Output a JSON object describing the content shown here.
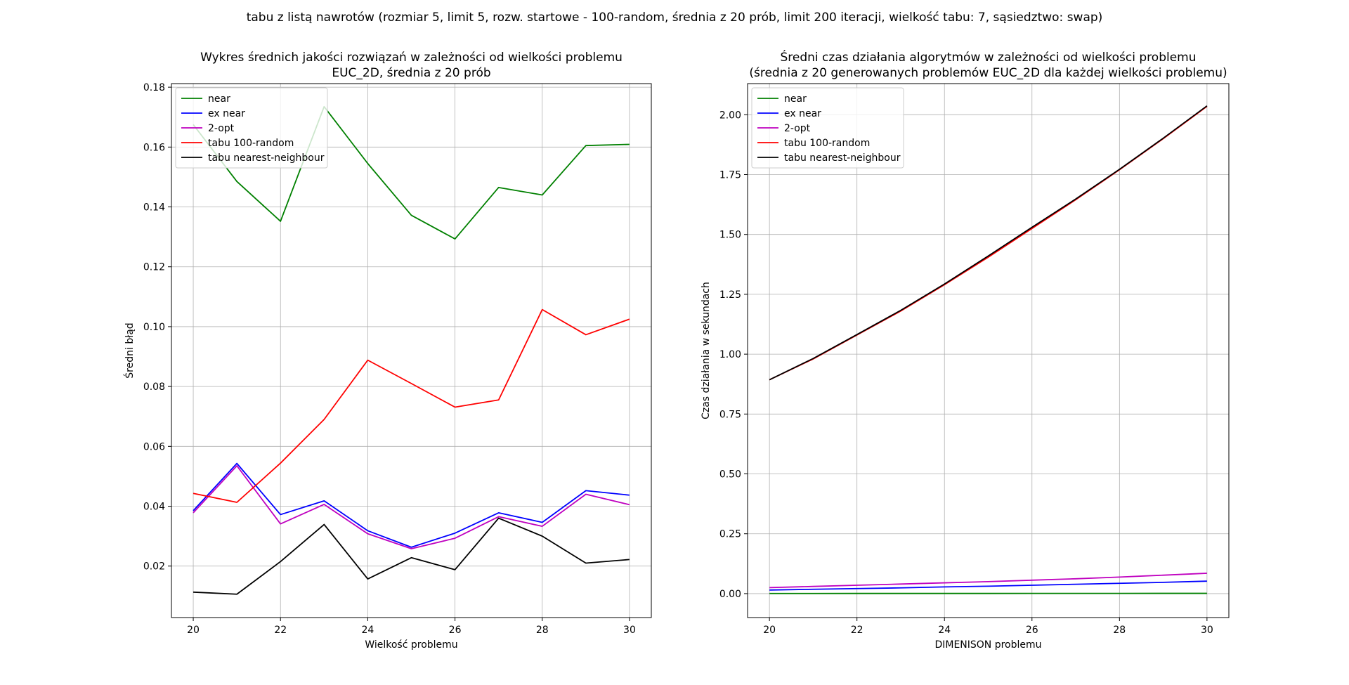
{
  "figure": {
    "suptitle": "tabu z listą nawrotów (rozmiar 5, limit 5, rozw. startowe - 100-random, średnia z 20 prób, limit 200 iteracji, wielkość tabu: 7, sąsiedztwo: swap)"
  },
  "chart_data": [
    {
      "type": "line",
      "title": [
        "Wykres średnich jakości rozwiązań w zależności od wielkości problemu",
        "EUC_2D, średnia z 20 prób"
      ],
      "xlabel": "Wielkość problemu",
      "ylabel": "Średni błąd",
      "x": [
        20,
        21,
        22,
        23,
        24,
        25,
        26,
        27,
        28,
        29,
        30
      ],
      "xlim": [
        19.5,
        30.5
      ],
      "ylim": [
        0.0028,
        0.1812
      ],
      "xticks": [
        20,
        22,
        24,
        26,
        28,
        30
      ],
      "yticks": [
        0.02,
        0.04,
        0.06,
        0.08,
        0.1,
        0.12,
        0.14,
        0.16,
        0.18
      ],
      "ytick_labels": [
        "0.02",
        "0.04",
        "0.06",
        "0.08",
        "0.10",
        "0.12",
        "0.14",
        "0.16",
        "0.18"
      ],
      "grid": true,
      "legend": "top-left",
      "series": [
        {
          "name": "near",
          "color": "#008000",
          "values": [
            0.1675,
            0.1485,
            0.1352,
            0.1735,
            0.1545,
            0.1372,
            0.1293,
            0.1465,
            0.144,
            0.1605,
            0.1609
          ]
        },
        {
          "name": "ex near",
          "color": "#0000ff",
          "values": [
            0.0385,
            0.0543,
            0.0372,
            0.0418,
            0.0318,
            0.0263,
            0.031,
            0.0378,
            0.0346,
            0.0452,
            0.0437
          ]
        },
        {
          "name": "2-opt",
          "color": "#bf00bf",
          "values": [
            0.0378,
            0.0535,
            0.0341,
            0.0406,
            0.0308,
            0.0258,
            0.0293,
            0.0365,
            0.0333,
            0.044,
            0.0405
          ]
        },
        {
          "name": "tabu 100-random",
          "color": "#ff0000",
          "values": [
            0.0443,
            0.0413,
            0.0544,
            0.069,
            0.0888,
            0.081,
            0.0731,
            0.0755,
            0.1057,
            0.0973,
            0.1025
          ]
        },
        {
          "name": "tabu nearest-neighbour",
          "color": "#000000",
          "values": [
            0.0113,
            0.0106,
            0.0215,
            0.0339,
            0.0157,
            0.0228,
            0.0188,
            0.036,
            0.03,
            0.021,
            0.0222
          ]
        }
      ]
    },
    {
      "type": "line",
      "title": [
        "Średni czas działania algorytmów w zależności od wielkości problemu",
        "(średnia z 20 generowanych problemów EUC_2D dla każdej wielkości problemu)"
      ],
      "xlabel": "DIMENISON problemu",
      "ylabel": "Czas działania w sekundach",
      "x": [
        20,
        21,
        22,
        23,
        24,
        25,
        26,
        27,
        28,
        29,
        30
      ],
      "xlim": [
        19.5,
        30.5
      ],
      "ylim": [
        -0.1,
        2.13
      ],
      "xticks": [
        20,
        22,
        24,
        26,
        28,
        30
      ],
      "yticks": [
        0.0,
        0.25,
        0.5,
        0.75,
        1.0,
        1.25,
        1.5,
        1.75,
        2.0
      ],
      "ytick_labels": [
        "0.00",
        "0.25",
        "0.50",
        "0.75",
        "1.00",
        "1.25",
        "1.50",
        "1.75",
        "2.00"
      ],
      "grid": true,
      "legend": "top-left",
      "series": [
        {
          "name": "near",
          "color": "#008000",
          "values": [
            0.0005,
            0.0005,
            0.0006,
            0.0006,
            0.0007,
            0.0007,
            0.0008,
            0.0008,
            0.0009,
            0.001,
            0.001
          ]
        },
        {
          "name": "ex near",
          "color": "#0000ff",
          "values": [
            0.015,
            0.018,
            0.021,
            0.024,
            0.028,
            0.031,
            0.035,
            0.039,
            0.043,
            0.047,
            0.052
          ]
        },
        {
          "name": "2-opt",
          "color": "#bf00bf",
          "values": [
            0.025,
            0.03,
            0.035,
            0.04,
            0.045,
            0.05,
            0.056,
            0.062,
            0.069,
            0.077,
            0.085
          ]
        },
        {
          "name": "tabu 100-random",
          "color": "#ff0000",
          "values": [
            0.893,
            0.98,
            1.08,
            1.18,
            1.29,
            1.405,
            1.525,
            1.645,
            1.77,
            1.9,
            2.035
          ]
        },
        {
          "name": "tabu nearest-neighbour",
          "color": "#000000",
          "values": [
            0.893,
            0.982,
            1.082,
            1.183,
            1.293,
            1.41,
            1.53,
            1.648,
            1.772,
            1.902,
            2.037
          ]
        }
      ]
    }
  ]
}
